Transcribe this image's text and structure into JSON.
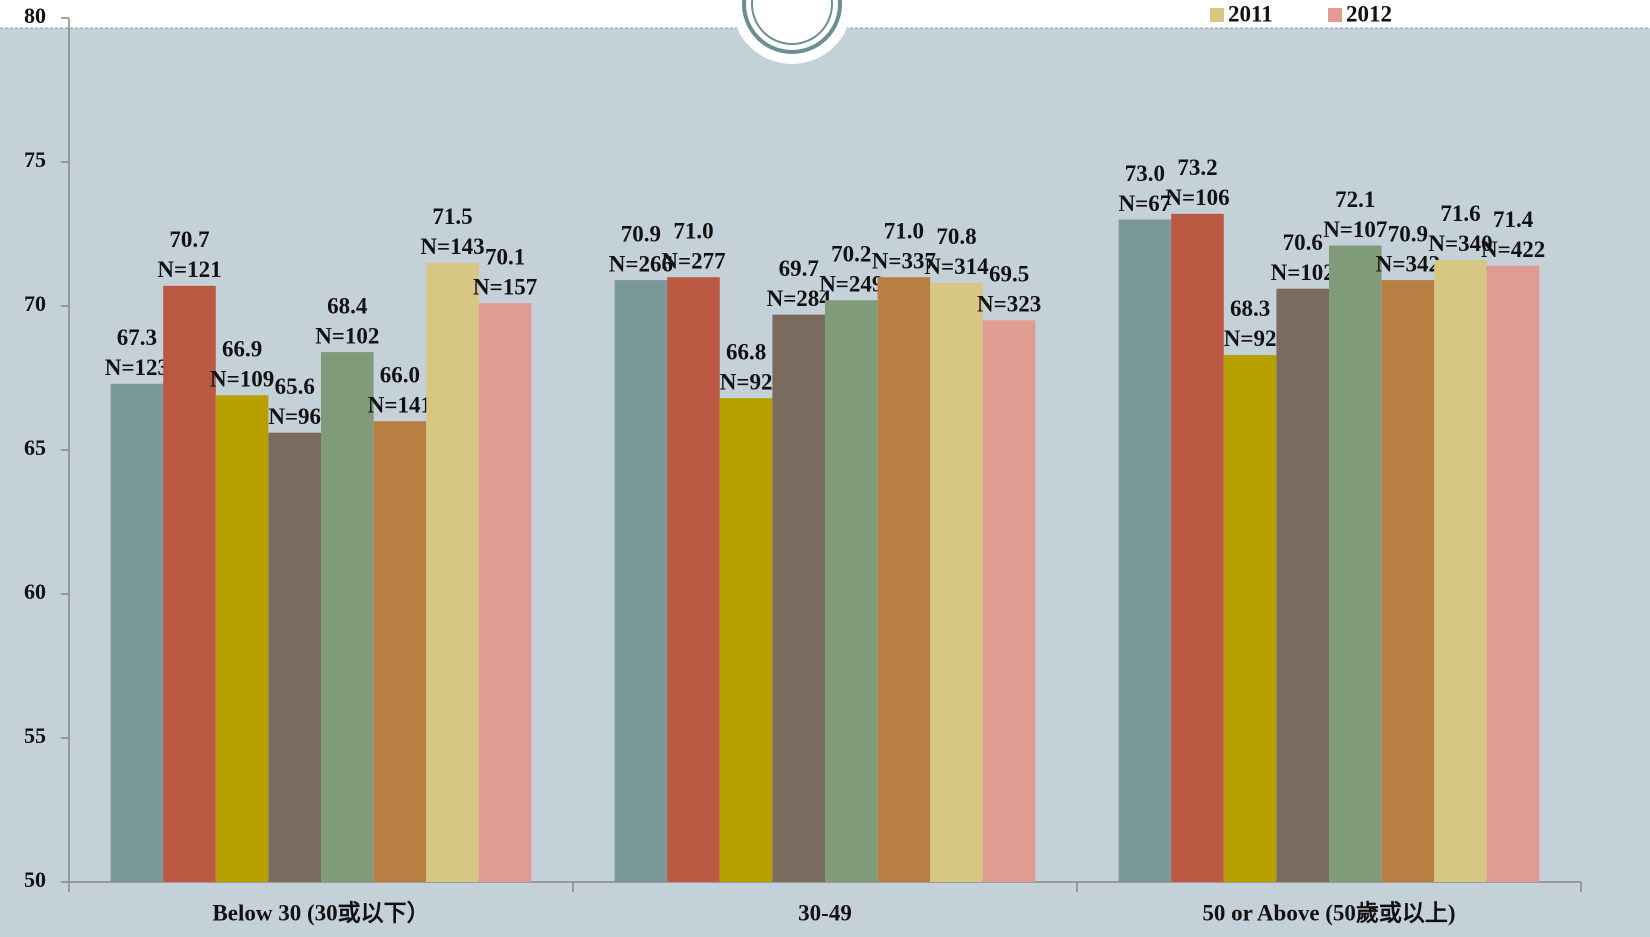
{
  "chart_data": {
    "type": "bar",
    "categories": [
      "Below 30 (30或以下）",
      "30-49",
      "50 or Above (50歲或以上)"
    ],
    "series": [
      {
        "name": null,
        "color": "#7b9899",
        "values": [
          67.3,
          70.9,
          73.0
        ],
        "value_labels": [
          "67.3",
          "70.9",
          "73.0"
        ],
        "n_labels": [
          "N=123",
          "N=266",
          "N=67"
        ]
      },
      {
        "name": null,
        "color": "#bb5841",
        "values": [
          70.7,
          71.0,
          73.2
        ],
        "value_labels": [
          "70.7",
          "71.0",
          "73.2"
        ],
        "n_labels": [
          "N=121",
          "N=277",
          "N=106"
        ]
      },
      {
        "name": null,
        "color": "#b5a000",
        "values": [
          66.9,
          66.8,
          68.3
        ],
        "value_labels": [
          "66.9",
          "66.8",
          "68.3"
        ],
        "n_labels": [
          "N=109",
          "N=92",
          "N=92"
        ]
      },
      {
        "name": null,
        "color": "#7a6b5e",
        "values": [
          65.6,
          69.7,
          70.6
        ],
        "value_labels": [
          "65.6",
          "69.7",
          "70.6"
        ],
        "n_labels": [
          "N=96",
          "N=284",
          "N=102"
        ]
      },
      {
        "name": null,
        "color": "#7f9b7a",
        "values": [
          68.4,
          70.2,
          72.1
        ],
        "value_labels": [
          "68.4",
          "70.2",
          "72.1"
        ],
        "n_labels": [
          "N=102",
          "N=249",
          "N=107"
        ]
      },
      {
        "name": null,
        "color": "#b97f42",
        "values": [
          66.0,
          71.0,
          70.9
        ],
        "value_labels": [
          "66.0",
          "71.0",
          "70.9"
        ],
        "n_labels": [
          "N=141",
          "N=337",
          "N=342"
        ]
      },
      {
        "name": "2011",
        "color": "#d8c683",
        "values": [
          71.5,
          70.8,
          71.6
        ],
        "value_labels": [
          "71.5",
          "70.8",
          "71.6"
        ],
        "n_labels": [
          "N=143",
          "N=314",
          "N=340"
        ]
      },
      {
        "name": "2012",
        "color": "#df9c93",
        "values": [
          70.1,
          69.5,
          71.4
        ],
        "value_labels": [
          "70.1",
          "69.5",
          "71.4"
        ],
        "n_labels": [
          "N=157",
          "N=323",
          "N=422"
        ]
      }
    ],
    "ylim": [
      50,
      80
    ],
    "yticks": [
      50,
      55,
      60,
      65,
      70,
      75,
      80
    ]
  }
}
